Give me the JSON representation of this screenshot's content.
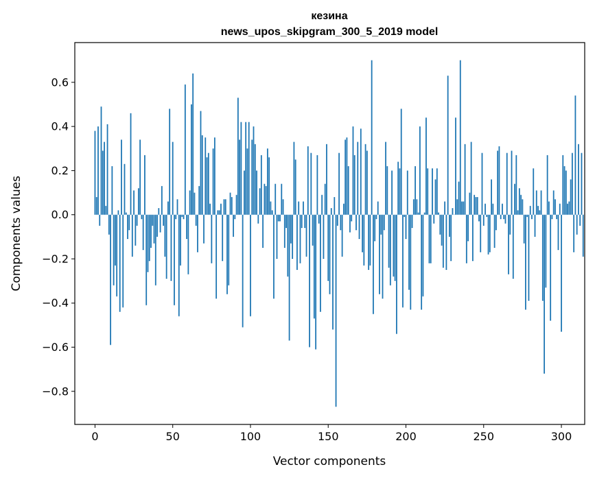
{
  "chart_data": {
    "type": "bar",
    "title": "кезина",
    "subtitle": "news_upos_skipgram_300_5_2019 model",
    "xlabel": "Vector components",
    "ylabel": "Components values",
    "xlim": [
      -13,
      315
    ],
    "ylim": [
      -0.95,
      0.78
    ],
    "xticks": [
      0,
      50,
      100,
      150,
      200,
      250,
      300
    ],
    "yticks": [
      -0.8,
      -0.6,
      -0.4,
      -0.2,
      0.0,
      0.2,
      0.4,
      0.6
    ],
    "ytick_labels": [
      "−0.8",
      "−0.6",
      "−0.4",
      "−0.2",
      "0.0",
      "0.2",
      "0.4",
      "0.6"
    ],
    "bar_color": "#1f77b4",
    "grid": false,
    "values": [
      0.38,
      0.08,
      0.4,
      -0.05,
      0.49,
      0.29,
      0.33,
      0.04,
      0.41,
      -0.09,
      -0.59,
      0.22,
      -0.32,
      -0.23,
      -0.37,
      0.02,
      -0.44,
      0.34,
      -0.42,
      0.23,
      0.01,
      -0.11,
      -0.07,
      0.46,
      -0.19,
      0.11,
      -0.14,
      -0.05,
      0.12,
      0.34,
      -0.02,
      -0.16,
      0.27,
      -0.41,
      -0.26,
      -0.21,
      -0.15,
      -0.05,
      -0.13,
      -0.32,
      -0.1,
      0.03,
      -0.08,
      0.13,
      -0.05,
      -0.19,
      -0.29,
      0.06,
      0.48,
      -0.3,
      0.33,
      -0.41,
      -0.02,
      0.07,
      -0.46,
      -0.23,
      -0.01,
      -0.02,
      0.59,
      -0.11,
      -0.27,
      0.11,
      0.5,
      0.64,
      0.1,
      -0.05,
      -0.17,
      0.13,
      0.47,
      0.36,
      -0.13,
      0.35,
      0.26,
      0.28,
      0.05,
      -0.22,
      0.3,
      0.35,
      -0.38,
      0.02,
      0.02,
      0.05,
      -0.21,
      0.07,
      0.07,
      -0.36,
      -0.32,
      0.1,
      0.08,
      -0.1,
      -0.02,
      0.09,
      0.53,
      0.34,
      0.42,
      -0.51,
      0.2,
      0.42,
      0.3,
      0.42,
      -0.46,
      0.34,
      0.4,
      0.32,
      0.2,
      -0.04,
      0.12,
      0.27,
      -0.15,
      0.14,
      0.13,
      0.3,
      0.26,
      0.06,
      0.02,
      -0.38,
      0.14,
      -0.2,
      -0.03,
      -0.03,
      0.14,
      0.07,
      -0.15,
      -0.06,
      -0.28,
      -0.57,
      -0.13,
      -0.2,
      0.33,
      0.25,
      -0.25,
      0.06,
      -0.22,
      -0.06,
      0.06,
      -0.06,
      -0.19,
      0.31,
      -0.6,
      0.28,
      -0.14,
      -0.47,
      -0.61,
      0.27,
      -0.04,
      -0.44,
      0.09,
      -0.2,
      0.14,
      0.32,
      -0.3,
      -0.36,
      0.03,
      -0.52,
      0.08,
      -0.87,
      -0.05,
      0.28,
      -0.07,
      -0.19,
      0.05,
      0.34,
      0.35,
      0.22,
      -0.08,
      -0.03,
      0.4,
      0.27,
      -0.07,
      0.33,
      -0.11,
      0.39,
      -0.17,
      -0.23,
      0.32,
      0.29,
      -0.25,
      -0.23,
      0.7,
      -0.45,
      -0.12,
      -0.02,
      0.06,
      -0.36,
      -0.09,
      -0.38,
      -0.07,
      0.33,
      0.22,
      -0.24,
      -0.32,
      0.2,
      -0.28,
      -0.3,
      -0.54,
      0.24,
      0.21,
      0.48,
      -0.42,
      -0.01,
      -0.11,
      0.2,
      -0.34,
      -0.43,
      -0.06,
      0.07,
      0.22,
      0.07,
      0.01,
      0.4,
      -0.43,
      -0.37,
      0.01,
      0.44,
      0.21,
      -0.22,
      -0.22,
      0.21,
      -0.04,
      0.16,
      0.21,
      0.01,
      -0.09,
      -0.14,
      -0.24,
      0.06,
      -0.25,
      0.63,
      -0.1,
      -0.21,
      0.03,
      0.0,
      0.44,
      0.07,
      0.15,
      0.7,
      0.06,
      0.06,
      0.32,
      -0.22,
      -0.12,
      0.1,
      0.33,
      -0.21,
      0.09,
      0.08,
      0.08,
      -0.03,
      -0.17,
      0.28,
      -0.05,
      0.05,
      -0.01,
      -0.18,
      -0.17,
      0.16,
      0.05,
      -0.15,
      -0.07,
      0.29,
      0.31,
      -0.02,
      0.05,
      -0.02,
      -0.04,
      0.28,
      -0.27,
      -0.09,
      0.29,
      -0.29,
      0.14,
      0.27,
      0.02,
      0.12,
      0.09,
      0.07,
      -0.13,
      -0.43,
      -0.01,
      -0.39,
      0.04,
      -0.02,
      0.21,
      -0.1,
      0.11,
      0.04,
      0.02,
      0.11,
      -0.39,
      -0.72,
      -0.33,
      0.27,
      0.06,
      -0.48,
      -0.02,
      0.11,
      0.07,
      -0.02,
      -0.16,
      0.05,
      -0.53,
      0.27,
      0.22,
      0.2,
      0.05,
      0.06,
      0.16,
      0.28,
      -0.17,
      0.54,
      -0.09,
      0.32,
      -0.05,
      0.28,
      -0.19
    ]
  }
}
